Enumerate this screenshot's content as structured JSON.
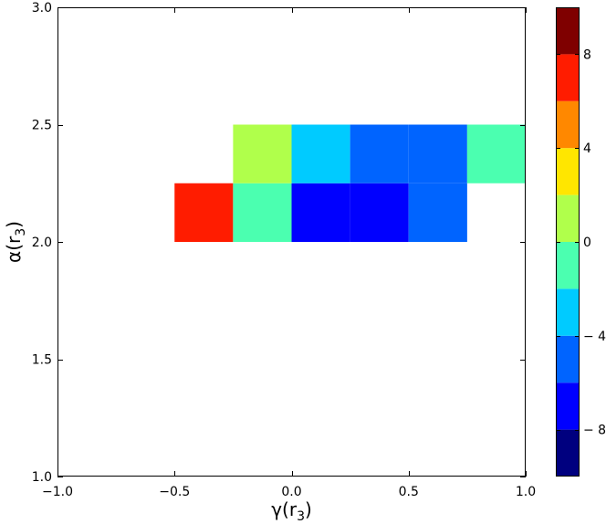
{
  "chart_data": {
    "type": "heatmap",
    "title": "",
    "xlabel": {
      "main": "γ(r",
      "sub": "3",
      "close": ")"
    },
    "ylabel": {
      "main": "α(r",
      "sub": "3",
      "close": ")"
    },
    "xlim": [
      -1.0,
      1.0
    ],
    "ylim": [
      1.0,
      3.0
    ],
    "xticks": [
      -1.0,
      -0.5,
      0.0,
      0.5,
      1.0
    ],
    "xtick_labels": [
      "−1.0",
      "−0.5",
      "0.0",
      "0.5",
      "1.0"
    ],
    "yticks": [
      1.0,
      1.5,
      2.0,
      2.5,
      3.0
    ],
    "ytick_labels": [
      "1.0",
      "1.5",
      "2.0",
      "2.5",
      "3.0"
    ],
    "cell_width": 0.25,
    "cell_height": 0.25,
    "cells": [
      {
        "x": -0.5,
        "y": 2.0,
        "value": 7
      },
      {
        "x": -0.25,
        "y": 2.0,
        "value": -1
      },
      {
        "x": 0.0,
        "y": 2.0,
        "value": -7
      },
      {
        "x": 0.25,
        "y": 2.0,
        "value": -7
      },
      {
        "x": 0.5,
        "y": 2.0,
        "value": -5
      },
      {
        "x": -0.25,
        "y": 2.25,
        "value": 1
      },
      {
        "x": 0.0,
        "y": 2.25,
        "value": -3
      },
      {
        "x": 0.25,
        "y": 2.25,
        "value": -5
      },
      {
        "x": 0.5,
        "y": 2.25,
        "value": -5
      },
      {
        "x": 0.75,
        "y": 2.25,
        "value": -1
      }
    ],
    "colorbar": {
      "vmin": -10,
      "vmax": 10,
      "ticks": [
        -8,
        -4,
        0,
        4,
        8
      ],
      "tick_labels": [
        "− 8",
        "− 4",
        "0",
        "4",
        "8"
      ],
      "colors": [
        "#00007f",
        "#0000ff",
        "#0064ff",
        "#00cbff",
        "#4bffb0",
        "#b0ff4b",
        "#ffe600",
        "#ff8800",
        "#ff1c00",
        "#7f0000"
      ]
    },
    "grid": false,
    "legend": "none"
  }
}
